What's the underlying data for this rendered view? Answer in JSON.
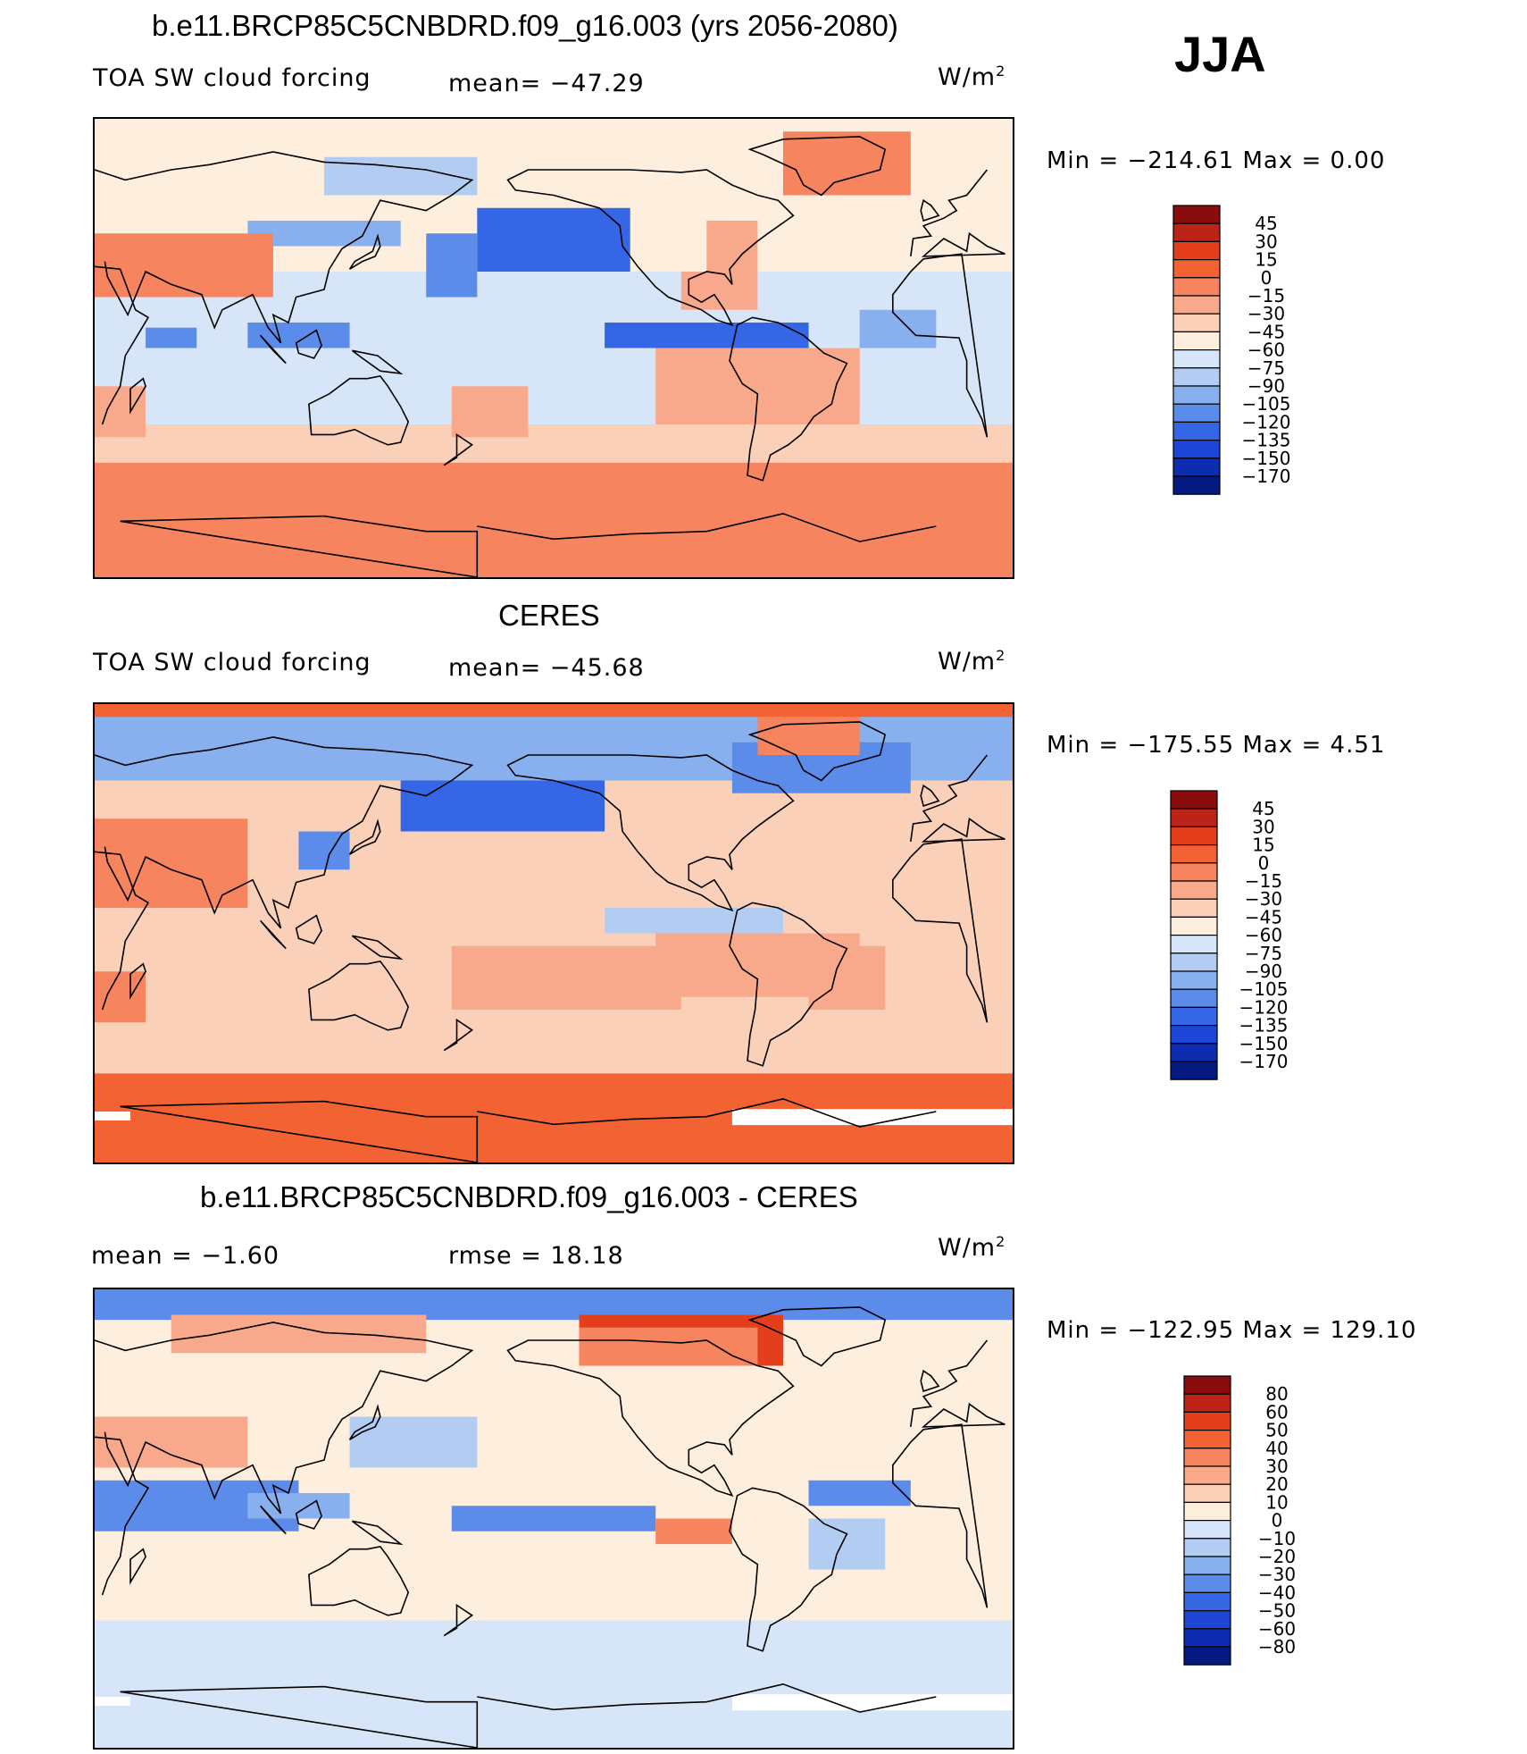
{
  "season": "JJA",
  "colors": {
    "warm": [
      "#fdeedd",
      "#fbd0b9",
      "#f9a98b",
      "#f6845e",
      "#f26232",
      "#e53e1d",
      "#bd2316",
      "#8b0c0c"
    ],
    "cool": [
      "#d6e6f8",
      "#b3cdf2",
      "#89b0ee",
      "#5b8cea",
      "#3466e6",
      "#1d45d6",
      "#0e2cb0",
      "#041a80"
    ],
    "coastline": "#000000",
    "blank": "#ffffff"
  },
  "panels": [
    {
      "id": "model",
      "title": "b.e11.BRCP85C5CNBDRD.f09_g16.003 (yrs 2056-2080)",
      "left_label": "TOA SW cloud forcing",
      "mid_label": "mean= −47.29",
      "units": "W/m",
      "units_sup": "2",
      "min_max": "Min = −214.61 Max =    0.00",
      "chart_data": {
        "type": "heatmap",
        "variable": "TOA SW cloud forcing",
        "mean": -47.29,
        "min": -214.61,
        "max": 0.0,
        "units": "W/m2",
        "colorbar_levels": [
          "45",
          "30",
          "15",
          "0",
          "−15",
          "−30",
          "−45",
          "−60",
          "−75",
          "−90",
          "−105",
          "−120",
          "−135",
          "−150",
          "−170"
        ]
      }
    },
    {
      "id": "obs",
      "title": "CERES",
      "left_label": "TOA SW cloud forcing",
      "mid_label": "mean= −45.68",
      "units": "W/m",
      "units_sup": "2",
      "min_max": "Min = −175.55 Max =    4.51",
      "chart_data": {
        "type": "heatmap",
        "variable": "TOA SW cloud forcing",
        "mean": -45.68,
        "min": -175.55,
        "max": 4.51,
        "units": "W/m2",
        "colorbar_levels": [
          "45",
          "30",
          "15",
          "0",
          "−15",
          "−30",
          "−45",
          "−60",
          "−75",
          "−90",
          "−105",
          "−120",
          "−135",
          "−150",
          "−170"
        ]
      }
    },
    {
      "id": "diff",
      "title": "b.e11.BRCP85C5CNBDRD.f09_g16.003 - CERES",
      "left_label": "mean =   −1.60",
      "mid_label": "rmse =   18.18",
      "units": "W/m",
      "units_sup": "2",
      "min_max": "Min = −122.95 Max = 129.10",
      "chart_data": {
        "type": "heatmap",
        "variable": "difference",
        "mean": -1.6,
        "rmse": 18.18,
        "min": -122.95,
        "max": 129.1,
        "units": "W/m2",
        "colorbar_levels": [
          "80",
          "60",
          "50",
          "40",
          "30",
          "20",
          "10",
          "0",
          "−10",
          "−20",
          "−30",
          "−40",
          "−50",
          "−60",
          "−80"
        ]
      }
    }
  ]
}
